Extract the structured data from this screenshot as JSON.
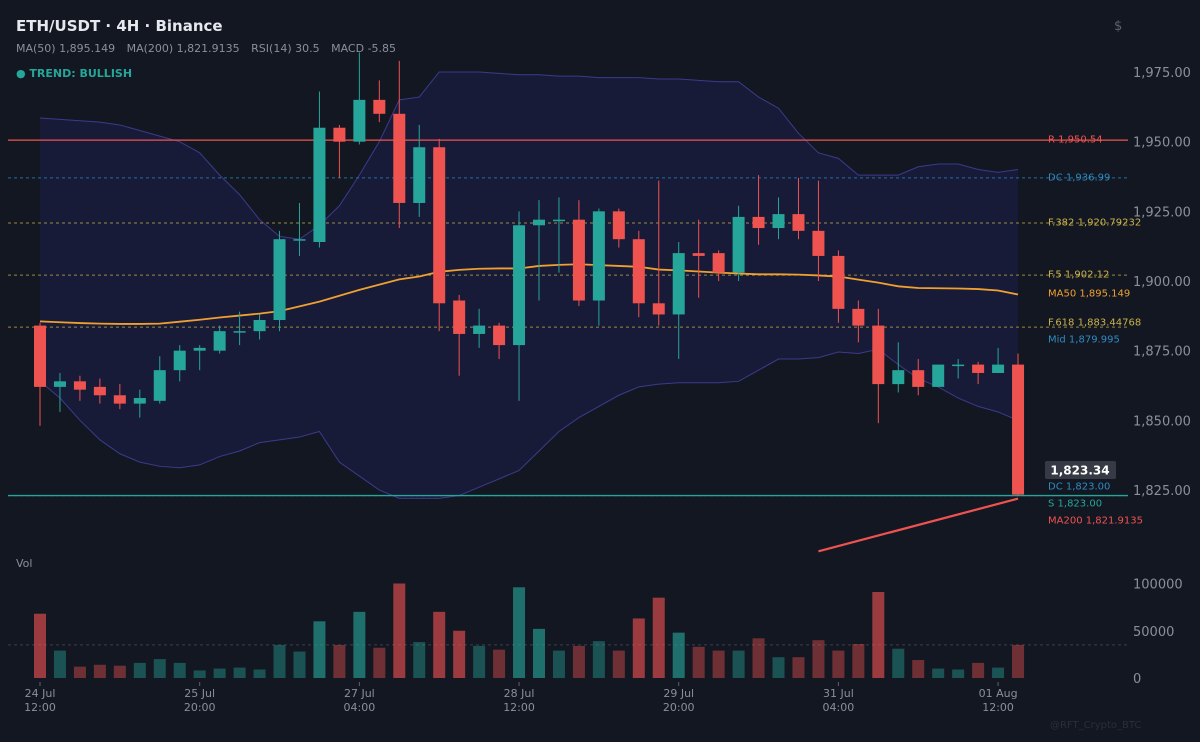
{
  "header": {
    "title": "ETH/USDT · 4H · Binance",
    "indicators": {
      "ma50": "MA(50) 1,895.149",
      "ma200": "MA(200) 1,821.9135",
      "rsi": "RSI(14) 30.5",
      "macd": "MACD -5.85"
    },
    "trend": "● TREND: BULLISH",
    "currency_symbol": "$"
  },
  "volume_panel": {
    "label": "Vol"
  },
  "watermark": "@RFT_Crypto_BTC",
  "colors": {
    "background": "#131722",
    "up": "#26a69a",
    "down": "#ef5350",
    "ma50": "#f0a030",
    "ma200": "#ef5350",
    "band": "#3d3a8c",
    "resistance": "#ef5350",
    "support": "#26a69a",
    "donchian": "#2e8bc0",
    "fib": "#c9b24a"
  },
  "chart_data": {
    "type": "candlestick",
    "title": "ETH/USDT · 4H · Binance",
    "price_ticks": [
      "1,975.00",
      "1,950.00",
      "1,925.00",
      "1,900.00",
      "1,875.00",
      "1,850.00",
      "1,825.00"
    ],
    "price_tick_values": [
      1975,
      1950,
      1925,
      1900,
      1875,
      1850,
      1825
    ],
    "ylim": [
      1817,
      1985
    ],
    "volume_ticks": [
      "100000",
      "50000",
      "0"
    ],
    "volume_tick_values": [
      100000,
      50000,
      0
    ],
    "volume_ylim": [
      0,
      105000
    ],
    "x_labels": [
      {
        "index": 0,
        "line1": "24 Jul",
        "line2": "12:00"
      },
      {
        "index": 8,
        "line1": "25 Jul",
        "line2": "20:00"
      },
      {
        "index": 16,
        "line1": "27 Jul",
        "line2": "04:00"
      },
      {
        "index": 24,
        "line1": "28 Jul",
        "line2": "12:00"
      },
      {
        "index": 32,
        "line1": "29 Jul",
        "line2": "20:00"
      },
      {
        "index": 40,
        "line1": "31 Jul",
        "line2": "04:00"
      },
      {
        "index": 48,
        "line1": "01 Aug",
        "line2": "12:00"
      }
    ],
    "candles": [
      {
        "o": 1884,
        "h": 1885,
        "l": 1848,
        "c": 1862,
        "v": 68000
      },
      {
        "o": 1862,
        "h": 1867,
        "l": 1853,
        "c": 1864,
        "v": 29000
      },
      {
        "o": 1864,
        "h": 1866,
        "l": 1857,
        "c": 1861,
        "v": 12000
      },
      {
        "o": 1862,
        "h": 1865,
        "l": 1856,
        "c": 1859,
        "v": 14000
      },
      {
        "o": 1859,
        "h": 1863,
        "l": 1854,
        "c": 1856,
        "v": 13000
      },
      {
        "o": 1856,
        "h": 1861,
        "l": 1851,
        "c": 1858,
        "v": 16000
      },
      {
        "o": 1857,
        "h": 1873,
        "l": 1856,
        "c": 1868,
        "v": 20000
      },
      {
        "o": 1868,
        "h": 1877,
        "l": 1864,
        "c": 1875,
        "v": 16000
      },
      {
        "o": 1875,
        "h": 1877,
        "l": 1868,
        "c": 1876,
        "v": 8000
      },
      {
        "o": 1875,
        "h": 1884,
        "l": 1874,
        "c": 1882,
        "v": 10000
      },
      {
        "o": 1882,
        "h": 1889,
        "l": 1877,
        "c": 1882,
        "v": 11000
      },
      {
        "o": 1882,
        "h": 1888,
        "l": 1879,
        "c": 1886,
        "v": 9000
      },
      {
        "o": 1886,
        "h": 1918,
        "l": 1882,
        "c": 1915,
        "v": 35000
      },
      {
        "o": 1915,
        "h": 1928,
        "l": 1909,
        "c": 1915,
        "v": 28000
      },
      {
        "o": 1914,
        "h": 1968,
        "l": 1912,
        "c": 1955,
        "v": 60000
      },
      {
        "o": 1955,
        "h": 1956,
        "l": 1937,
        "c": 1950,
        "v": 35000
      },
      {
        "o": 1950,
        "h": 1982,
        "l": 1949,
        "c": 1965,
        "v": 70000
      },
      {
        "o": 1965,
        "h": 1972,
        "l": 1957,
        "c": 1960,
        "v": 32000
      },
      {
        "o": 1960,
        "h": 1979,
        "l": 1919,
        "c": 1928,
        "v": 100000
      },
      {
        "o": 1928,
        "h": 1956,
        "l": 1923,
        "c": 1948,
        "v": 38000
      },
      {
        "o": 1948,
        "h": 1951,
        "l": 1882,
        "c": 1892,
        "v": 70000
      },
      {
        "o": 1893,
        "h": 1895,
        "l": 1866,
        "c": 1881,
        "v": 50000
      },
      {
        "o": 1881,
        "h": 1890,
        "l": 1876,
        "c": 1884,
        "v": 34000
      },
      {
        "o": 1884,
        "h": 1885,
        "l": 1872,
        "c": 1877,
        "v": 30000
      },
      {
        "o": 1877,
        "h": 1925,
        "l": 1857,
        "c": 1920,
        "v": 96000
      },
      {
        "o": 1920,
        "h": 1929,
        "l": 1893,
        "c": 1922,
        "v": 52000
      },
      {
        "o": 1922,
        "h": 1930,
        "l": 1903,
        "c": 1922,
        "v": 29000
      },
      {
        "o": 1922,
        "h": 1929,
        "l": 1891,
        "c": 1893,
        "v": 34000
      },
      {
        "o": 1893,
        "h": 1926,
        "l": 1884,
        "c": 1925,
        "v": 39000
      },
      {
        "o": 1925,
        "h": 1926,
        "l": 1912,
        "c": 1915,
        "v": 29000
      },
      {
        "o": 1915,
        "h": 1918,
        "l": 1887,
        "c": 1892,
        "v": 63000
      },
      {
        "o": 1892,
        "h": 1936,
        "l": 1884,
        "c": 1888,
        "v": 85000
      },
      {
        "o": 1888,
        "h": 1914,
        "l": 1872,
        "c": 1910,
        "v": 48000
      },
      {
        "o": 1910,
        "h": 1922,
        "l": 1894,
        "c": 1909,
        "v": 33000
      },
      {
        "o": 1910,
        "h": 1911,
        "l": 1900,
        "c": 1903,
        "v": 29000
      },
      {
        "o": 1903,
        "h": 1927,
        "l": 1900,
        "c": 1923,
        "v": 29000
      },
      {
        "o": 1923,
        "h": 1938,
        "l": 1913,
        "c": 1919,
        "v": 42000
      },
      {
        "o": 1919,
        "h": 1930,
        "l": 1915,
        "c": 1924,
        "v": 22000
      },
      {
        "o": 1924,
        "h": 1937,
        "l": 1915,
        "c": 1918,
        "v": 22000
      },
      {
        "o": 1918,
        "h": 1936,
        "l": 1900,
        "c": 1909,
        "v": 40000
      },
      {
        "o": 1909,
        "h": 1911,
        "l": 1885,
        "c": 1890,
        "v": 29000
      },
      {
        "o": 1890,
        "h": 1893,
        "l": 1878,
        "c": 1884,
        "v": 36000
      },
      {
        "o": 1884,
        "h": 1890,
        "l": 1849,
        "c": 1863,
        "v": 91000
      },
      {
        "o": 1863,
        "h": 1878,
        "l": 1860,
        "c": 1868,
        "v": 31000
      },
      {
        "o": 1868,
        "h": 1872,
        "l": 1859,
        "c": 1862,
        "v": 19000
      },
      {
        "o": 1862,
        "h": 1870,
        "l": 1862,
        "c": 1870,
        "v": 10000
      },
      {
        "o": 1870,
        "h": 1872,
        "l": 1865,
        "c": 1870,
        "v": 9000
      },
      {
        "o": 1870,
        "h": 1871,
        "l": 1863,
        "c": 1867,
        "v": 16000
      },
      {
        "o": 1867,
        "h": 1876,
        "l": 1867,
        "c": 1870,
        "v": 11000
      },
      {
        "o": 1870,
        "h": 1874,
        "l": 1823,
        "c": 1823.34,
        "v": 35000
      }
    ],
    "ma50": [
      1885.5,
      1885.2,
      1884.9,
      1884.7,
      1884.6,
      1884.6,
      1884.7,
      1885.4,
      1886.1,
      1886.9,
      1887.6,
      1888.3,
      1889.2,
      1890.9,
      1892.6,
      1894.7,
      1896.8,
      1898.7,
      1900.6,
      1901.6,
      1903.3,
      1904.0,
      1904.4,
      1904.5,
      1904.5,
      1905.4,
      1905.8,
      1906.0,
      1905.7,
      1905.4,
      1905.1,
      1904.1,
      1903.8,
      1903.4,
      1903.0,
      1902.7,
      1902.4,
      1902.4,
      1902.3,
      1902.0,
      1901.6,
      1900.5,
      1899.4,
      1898.1,
      1897.5,
      1897.4,
      1897.3,
      1897.1,
      1896.6,
      1895.149
    ],
    "bb_upper": [
      1958.5,
      1958,
      1957.5,
      1957,
      1956,
      1954,
      1952,
      1950,
      1946,
      1938,
      1931,
      1922,
      1916,
      1915,
      1920,
      1927,
      1938,
      1950,
      1965,
      1966,
      1975,
      1975,
      1975,
      1974.5,
      1974,
      1974,
      1973.5,
      1973.5,
      1973,
      1973,
      1973,
      1972.5,
      1972.5,
      1972,
      1971.5,
      1971.5,
      1966,
      1962,
      1953,
      1946,
      1944,
      1938,
      1938,
      1938,
      1941,
      1942,
      1942,
      1940,
      1939,
      1940
    ],
    "bb_lower": [
      1864,
      1858,
      1850,
      1843,
      1838,
      1835,
      1833.5,
      1833,
      1834,
      1837,
      1839,
      1842,
      1843,
      1844,
      1846,
      1835,
      1830,
      1825,
      1822,
      1822,
      1822,
      1823,
      1826,
      1829,
      1832,
      1839,
      1846,
      1851,
      1855,
      1859,
      1862,
      1863,
      1863.5,
      1863.5,
      1863.5,
      1864,
      1868,
      1872,
      1872,
      1872.5,
      1874.5,
      1874,
      1875.5,
      1870,
      1865,
      1862,
      1858,
      1855,
      1853,
      1850
    ],
    "levels": [
      {
        "name": "resistance",
        "label": "R 1,950.54",
        "value": 1950.54,
        "color": "#ef5350",
        "style": "solid"
      },
      {
        "name": "donchian-upper",
        "label": "DC 1,936.99",
        "value": 1936.99,
        "color": "#2e8bc0",
        "style": "dashed"
      },
      {
        "name": "fib-382",
        "label": "F.382 1,920.79232",
        "value": 1920.79232,
        "color": "#c9b24a",
        "style": "dashed"
      },
      {
        "name": "fib-5",
        "label": "F.5 1,902.12",
        "value": 1902.12,
        "color": "#c9b24a",
        "style": "dashed"
      },
      {
        "name": "fib-618",
        "label": "F.618 1,883.44768",
        "value": 1883.44768,
        "color": "#c9b24a",
        "style": "dashed"
      },
      {
        "name": "mid",
        "label": "Mid 1,879.995",
        "value": 1879.995,
        "color": "#2e8bc0",
        "style": "none"
      },
      {
        "name": "donchian-lower",
        "label": "DC 1,823.00",
        "value": 1823.0,
        "color": "#2e8bc0",
        "style": "dashed"
      },
      {
        "name": "support",
        "label": "S 1,823.00",
        "value": 1823.0,
        "color": "#26a69a",
        "style": "solid"
      }
    ],
    "ma50_label": "MA50 1,895.149",
    "ma200_label": "MA200 1,821.9135",
    "ma200_line": {
      "start_index": 39,
      "start_value": 1803,
      "end_index": 49,
      "end_value": 1821.9135
    },
    "last_price": 1823.34,
    "last_price_label": "1,823.34"
  }
}
